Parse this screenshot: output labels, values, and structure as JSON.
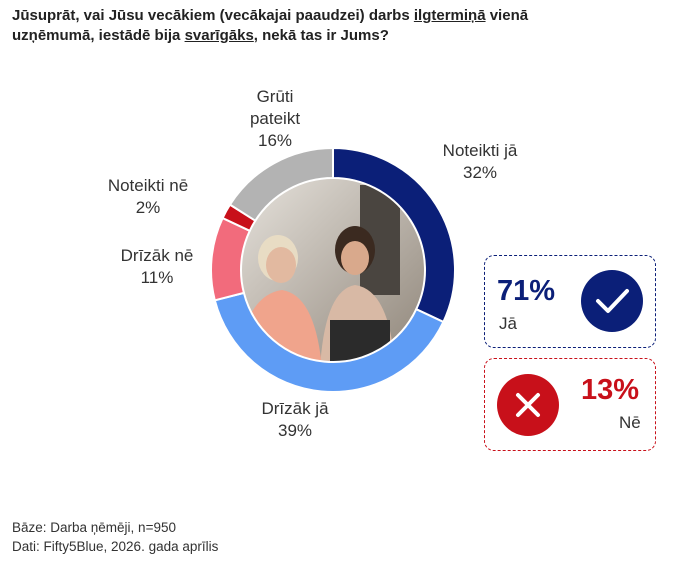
{
  "title_parts": [
    {
      "text": "Jūsuprāt, vai Jūsu vecākiem (vecākajai paaudzei) darbs ",
      "underline": false
    },
    {
      "text": "ilgtermiņā",
      "underline": true
    },
    {
      "text": " vienā uzņēmumā, iestādē bija ",
      "underline": false
    },
    {
      "text": "svarīgāks",
      "underline": true
    },
    {
      "text": ", nekā tas ir Jums?",
      "underline": false
    }
  ],
  "chart_data": {
    "type": "donut",
    "categories": [
      "Noteikti jā",
      "Drīzāk jā",
      "Drīzāk nē",
      "Noteikti nē",
      "Grūti pateikt"
    ],
    "values": [
      32,
      39,
      11,
      2,
      16
    ],
    "value_labels": [
      "32%",
      "39%",
      "11%",
      "2%",
      "16%"
    ],
    "colors": [
      "#0b1f78",
      "#5e9cf5",
      "#f26b7c",
      "#c8101a",
      "#b3b3b3"
    ]
  },
  "summary": [
    {
      "value": "71%",
      "label": "Jā",
      "color": "#0b1f78"
    },
    {
      "value": "13%",
      "label": "Nē",
      "color": "#c8101a"
    }
  ],
  "footnotes": [
    "Bāze: Darba ņēmēji, n=950",
    "Dati: Fifty5Blue, 2026. gada aprīlis"
  ]
}
